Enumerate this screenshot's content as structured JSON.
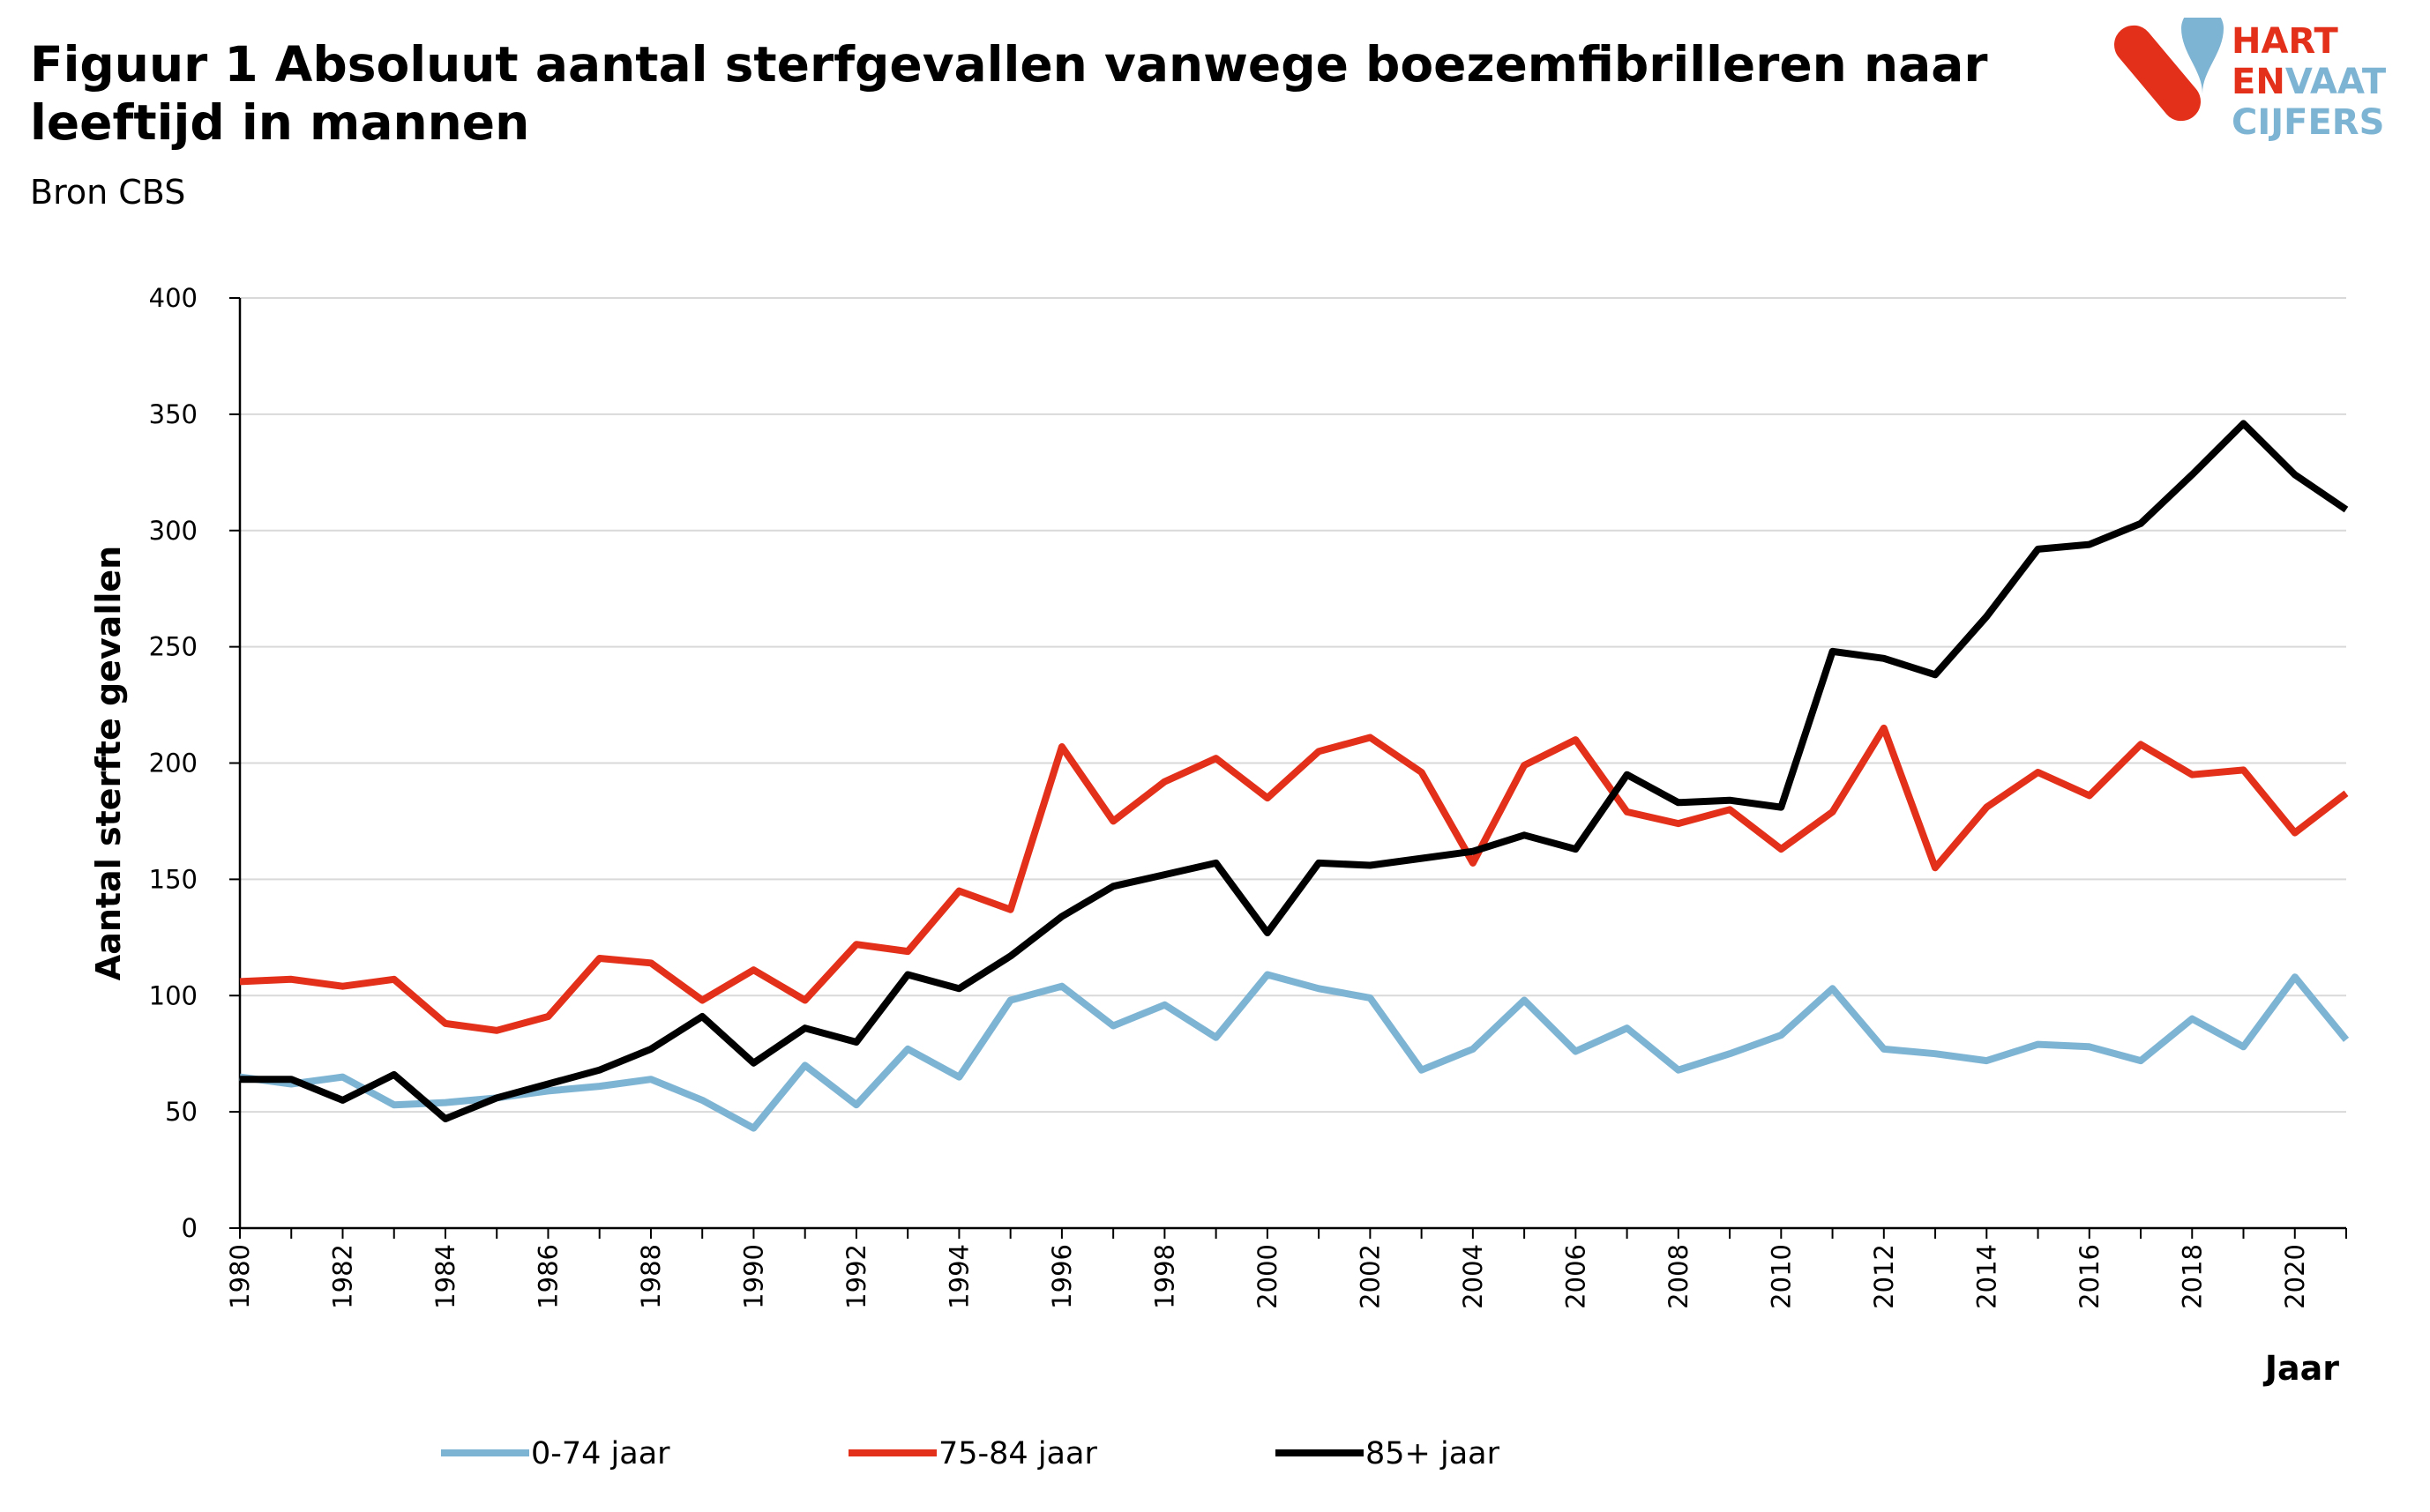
{
  "header": {
    "title": "Figuur 1 Absoluut aantal sterfgevallen vanwege boezemfibrilleren naar leeftijd in mannen",
    "subtitle": "Bron CBS"
  },
  "logo": {
    "line1": "HART",
    "line2a": "EN",
    "line2b": "VAAT",
    "line3": "CIJFERS",
    "colors": {
      "red": "#E3301A",
      "blue": "#7EB4D3"
    }
  },
  "chart_data": {
    "type": "line",
    "title": "Figuur 1 Absoluut aantal sterfgevallen vanwege boezemfibrilleren naar leeftijd in mannen",
    "xlabel": "Jaar",
    "ylabel": "Aantal sterfte gevallen",
    "ylim": [
      0,
      400
    ],
    "yticks": [
      0,
      50,
      100,
      150,
      200,
      250,
      300,
      350,
      400
    ],
    "xlim": [
      1980,
      2021
    ],
    "xticks": [
      1980,
      1982,
      1984,
      1986,
      1988,
      1990,
      1992,
      1994,
      1996,
      1998,
      2000,
      2002,
      2004,
      2006,
      2008,
      2010,
      2012,
      2014,
      2016,
      2018,
      2020
    ],
    "x": [
      1980,
      1981,
      1982,
      1983,
      1984,
      1985,
      1986,
      1987,
      1988,
      1989,
      1990,
      1991,
      1992,
      1993,
      1994,
      1995,
      1996,
      1997,
      1998,
      1999,
      2000,
      2001,
      2002,
      2003,
      2004,
      2005,
      2006,
      2007,
      2008,
      2009,
      2010,
      2011,
      2012,
      2013,
      2014,
      2015,
      2016,
      2017,
      2018,
      2019,
      2020,
      2021
    ],
    "grid": true,
    "legend_position": "bottom",
    "series": [
      {
        "name": "0-74 jaar",
        "color": "#7EB4D3",
        "values": [
          65,
          62,
          65,
          53,
          54,
          56,
          59,
          61,
          64,
          55,
          43,
          70,
          53,
          77,
          65,
          98,
          104,
          87,
          96,
          82,
          109,
          103,
          99,
          68,
          77,
          98,
          76,
          86,
          68,
          75,
          83,
          103,
          77,
          75,
          72,
          79,
          78,
          72,
          90,
          78,
          108,
          81
        ]
      },
      {
        "name": "75-84 jaar",
        "color": "#E3301A",
        "values": [
          106,
          107,
          104,
          107,
          88,
          85,
          91,
          116,
          114,
          98,
          111,
          98,
          122,
          119,
          145,
          137,
          207,
          175,
          192,
          202,
          185,
          205,
          211,
          196,
          157,
          199,
          210,
          179,
          174,
          180,
          163,
          179,
          215,
          155,
          181,
          196,
          186,
          208,
          195,
          197,
          170,
          187
        ]
      },
      {
        "name": "85+ jaar",
        "color": "#000000",
        "values": [
          64,
          64,
          55,
          66,
          47,
          56,
          62,
          68,
          77,
          91,
          71,
          86,
          80,
          109,
          103,
          117,
          134,
          147,
          152,
          157,
          127,
          157,
          156,
          159,
          162,
          169,
          163,
          195,
          183,
          184,
          181,
          248,
          245,
          238,
          263,
          292,
          294,
          303,
          324,
          346,
          324,
          309
        ]
      }
    ]
  }
}
